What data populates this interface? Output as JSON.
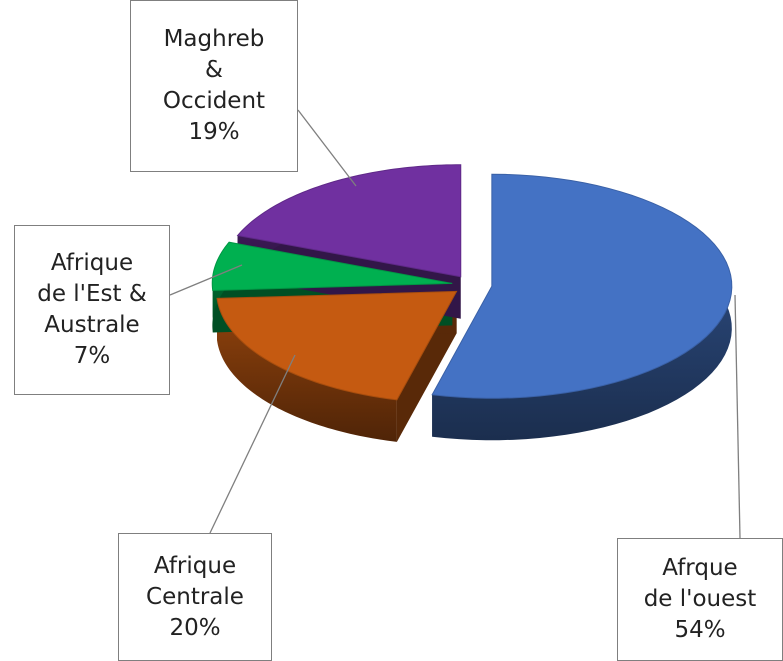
{
  "chart_data": {
    "type": "pie",
    "categories": [
      "Afrque\nde l'ouest",
      "Afrique\nCentrale",
      "Afrique\nde l'Est &\nAustrale",
      "Maghreb\n&\nOccident"
    ],
    "values": [
      54,
      20,
      7,
      19
    ],
    "value_labels": [
      "54%",
      "20%",
      "7%",
      "19%"
    ],
    "colors": [
      "#4472c4",
      "#c55a11",
      "#00b050",
      "#7030a0"
    ]
  }
}
